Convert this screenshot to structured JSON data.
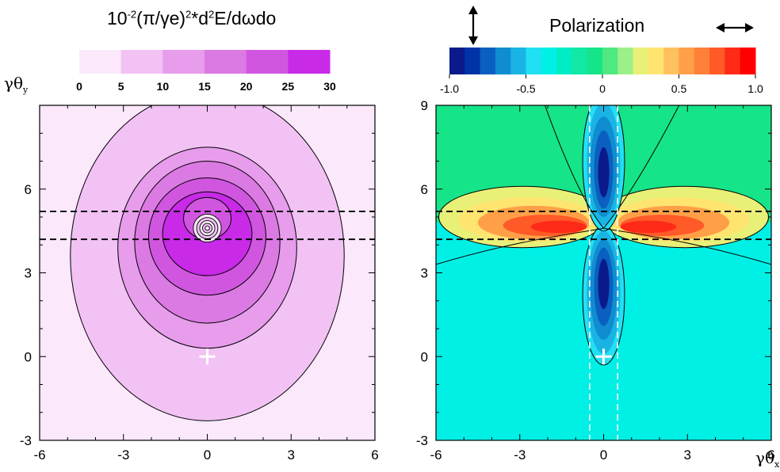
{
  "chart_data": [
    {
      "type": "heatmap",
      "title_prefix": "10",
      "title_exponent": "-2",
      "title_main": "(π/γe)",
      "title_exponent2": "2",
      "title_suffix": "*d",
      "title_exponent3": "2",
      "title_tail": "E/dωdo",
      "ylabel_main": "γθ",
      "ylabel_sub": "y",
      "colorbar": {
        "levels": [
          0,
          5,
          10,
          15,
          20,
          25,
          30
        ],
        "tick_labels": [
          "0",
          "5",
          "10",
          "15",
          "20",
          "25",
          "30"
        ],
        "colors": [
          "#fbe8fb",
          "#f2c2f4",
          "#e79cec",
          "#dc7ae3",
          "#d056e0",
          "#c82ae8"
        ]
      },
      "xlim": [
        -6,
        6
      ],
      "ylim": [
        -3,
        9
      ],
      "x_ticks": [
        "-6",
        "-3",
        "0",
        "3",
        "6"
      ],
      "y_ticks": [
        "-3",
        "0",
        "3",
        "6"
      ],
      "dashed_lines_y": [
        4.2,
        5.2
      ],
      "marker": [
        0,
        0
      ],
      "peak": [
        0,
        4.6
      ]
    },
    {
      "type": "heatmap",
      "title": "Polarization",
      "xlabel_main": "γθ",
      "xlabel_sub": "x",
      "colorbar": {
        "range": [
          -1.0,
          1.0
        ],
        "tick_labels": [
          "-1.0",
          "-0.5",
          "0",
          "0.5",
          "1.0"
        ],
        "tick_values": [
          -1.0,
          -0.5,
          0,
          0.5,
          1.0
        ],
        "colors": [
          "#0b1a8a",
          "#0033a8",
          "#0a5fc0",
          "#108cd0",
          "#1ab4e4",
          "#22e0f4",
          "#00f0e6",
          "#00ecc4",
          "#10e8a4",
          "#16e488",
          "#50e880",
          "#9cf088",
          "#e8f078",
          "#ffe470",
          "#ffc060",
          "#ffa048",
          "#ff8038",
          "#ff5a28",
          "#ff2a18",
          "#ff0000"
        ]
      },
      "legend_left": "vertical",
      "legend_right": "horizontal",
      "xlim": [
        -6,
        6
      ],
      "ylim": [
        -3,
        9
      ],
      "x_ticks": [
        "-6",
        "-3",
        "0",
        "3",
        "6"
      ],
      "y_ticks": [
        "-3",
        "0",
        "3",
        "6",
        "9"
      ],
      "dashed_lines_y": [
        4.2,
        5.2
      ],
      "dashed_lines_x": [
        -0.5,
        0.5
      ],
      "marker": [
        0,
        0
      ],
      "center": [
        0,
        4.6
      ]
    }
  ]
}
